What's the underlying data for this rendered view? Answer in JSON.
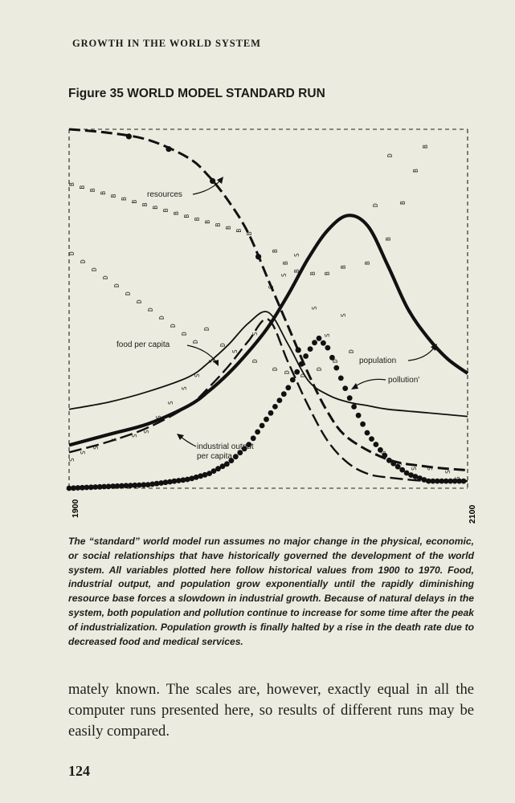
{
  "running_head": "GROWTH IN THE WORLD SYSTEM",
  "figure_title": "Figure 35 WORLD MODEL STANDARD RUN",
  "chart_data": {
    "type": "line",
    "x_range": [
      1900,
      2100
    ],
    "x_ticks": [
      "1900",
      "2100"
    ],
    "grid": false,
    "series": [
      {
        "name": "resources",
        "x": [
          1900,
          1920,
          1940,
          1960,
          1970,
          1980,
          1990,
          2000,
          2010,
          2020,
          2030,
          2040,
          2060,
          2080,
          2100
        ],
        "y": [
          1.0,
          0.99,
          0.97,
          0.92,
          0.87,
          0.8,
          0.71,
          0.58,
          0.45,
          0.32,
          0.21,
          0.14,
          0.08,
          0.06,
          0.05
        ]
      },
      {
        "name": "population",
        "x": [
          1900,
          1920,
          1940,
          1960,
          1970,
          1980,
          1990,
          2000,
          2010,
          2020,
          2030,
          2040,
          2050,
          2060,
          2070,
          2080,
          2090,
          2100
        ],
        "y": [
          0.12,
          0.15,
          0.18,
          0.23,
          0.27,
          0.32,
          0.38,
          0.45,
          0.54,
          0.64,
          0.72,
          0.76,
          0.73,
          0.62,
          0.5,
          0.42,
          0.36,
          0.32
        ]
      },
      {
        "name": "food per capita",
        "x": [
          1900,
          1920,
          1940,
          1960,
          1970,
          1980,
          1990,
          2000,
          2010,
          2020,
          2030,
          2040,
          2050,
          2060,
          2080,
          2100
        ],
        "y": [
          0.22,
          0.24,
          0.27,
          0.31,
          0.35,
          0.4,
          0.46,
          0.49,
          0.4,
          0.3,
          0.26,
          0.24,
          0.23,
          0.22,
          0.21,
          0.2
        ]
      },
      {
        "name": "industrial output per capita",
        "x": [
          1900,
          1920,
          1940,
          1960,
          1970,
          1980,
          1990,
          2000,
          2010,
          2020,
          2030,
          2040,
          2050,
          2060,
          2080,
          2100
        ],
        "y": [
          0.1,
          0.13,
          0.17,
          0.23,
          0.28,
          0.34,
          0.41,
          0.47,
          0.35,
          0.23,
          0.13,
          0.07,
          0.04,
          0.03,
          0.02,
          0.02
        ]
      },
      {
        "name": "pollution",
        "x": [
          1900,
          1920,
          1940,
          1960,
          1970,
          1980,
          1990,
          2000,
          2010,
          2020,
          2025,
          2030,
          2040,
          2050,
          2060,
          2070,
          2080,
          2100
        ],
        "y": [
          0.0,
          0.005,
          0.01,
          0.025,
          0.04,
          0.07,
          0.12,
          0.2,
          0.28,
          0.38,
          0.42,
          0.39,
          0.26,
          0.15,
          0.08,
          0.04,
          0.02,
          0.02
        ]
      }
    ],
    "annotations": {
      "resources": "resources",
      "food_per_capita": "food per capita",
      "population": "population",
      "pollution": "pollution'",
      "industrial_output": [
        "industrial output",
        "per capita"
      ]
    }
  },
  "caption": "The “standard” world model run assumes no major change in the physical, economic, or social relationships that have historically governed the development of the world system. All variables plotted here follow historical values from 1900 to 1970. Food, industrial output, and population grow exponentially until the rapidly diminishing resource base forces a slowdown in industrial growth. Because of natural delays in the system, both population and pollution continue to increase for some time after the peak of industrialization. Population growth is finally halted by a rise in the death rate due to decreased food and medical services.",
  "body_text": "mately known. The scales are, however, exactly equal in all the computer runs presented here, so results of different runs may be easily compared.",
  "page_number": "124",
  "colors": {
    "paper": "#ecebdf",
    "ink": "#1d1c1a"
  }
}
